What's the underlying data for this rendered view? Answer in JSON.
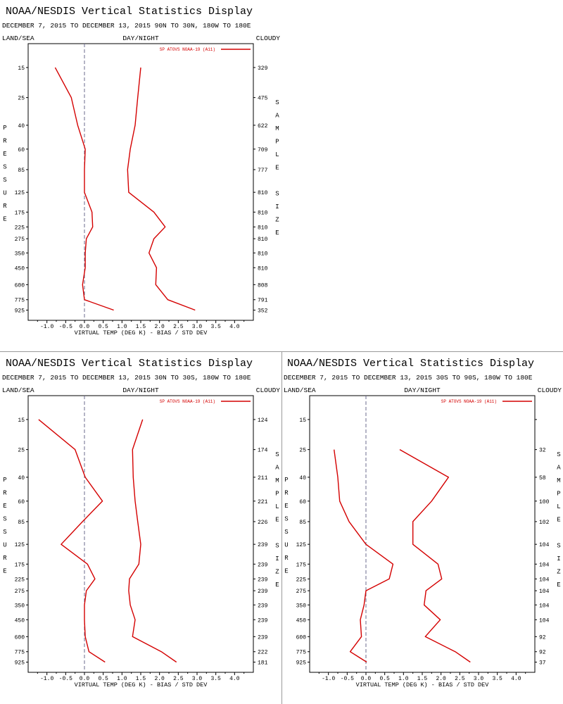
{
  "colors": {
    "series": "#d40000",
    "axis": "#000000",
    "zero_line": "#6b6b8c",
    "divider": "#9a9a9a"
  },
  "chart_data": [
    {
      "type": "line",
      "title": "NOAA/NESDIS Vertical Statistics Display",
      "subtitle": "DECEMBER 7, 2015 TO DECEMBER 13, 2015 90N TO 30N, 180W TO 180E",
      "left_header": "LAND/SEA",
      "center_header": "DAY/NIGHT",
      "right_header": "CLOUDY",
      "y_side_label": "PRESSURE",
      "right_side_label": "SAMPLE SIZE",
      "xlabel": "VIRTUAL TEMP (DEG K) - BIAS / STD DEV",
      "x_ticks": [
        "-1.0",
        "-0.5",
        "0.0",
        "0.5",
        "1.0",
        "1.5",
        "2.0",
        "2.5",
        "3.0",
        "3.5",
        "4.0"
      ],
      "xlim": [
        -1.5,
        4.5
      ],
      "y_scale": "log",
      "ylim": [
        10,
        1100
      ],
      "pressure_levels": [
        15,
        25,
        40,
        60,
        85,
        125,
        175,
        225,
        275,
        350,
        450,
        600,
        775,
        925
      ],
      "pressure_labels": [
        "15",
        "25",
        "40",
        "60",
        "85",
        "125",
        "175",
        "225",
        "275",
        "350",
        "450",
        "600",
        "775",
        "925"
      ],
      "sample_sizes": [
        "329",
        "475",
        "622",
        "709",
        "777",
        "810",
        "810",
        "810",
        "810",
        "810",
        "810",
        "808",
        "791",
        "352"
      ],
      "legend": "SP ATOVS NOAA-19 (A11)",
      "legend_position": "top-right",
      "series": [
        {
          "name": "BIAS",
          "x": [
            -0.78,
            -0.35,
            -0.18,
            0.02,
            0.0,
            0.0,
            0.2,
            0.22,
            0.05,
            0.02,
            0.02,
            -0.05,
            0.0,
            0.78
          ],
          "y": [
            15,
            25,
            40,
            60,
            85,
            125,
            175,
            225,
            275,
            350,
            450,
            600,
            775,
            925
          ]
        },
        {
          "name": "STD DEV",
          "x": [
            1.5,
            1.42,
            1.35,
            1.22,
            1.15,
            1.18,
            1.85,
            2.15,
            1.85,
            1.72,
            1.92,
            1.9,
            2.22,
            2.95
          ],
          "y": [
            15,
            25,
            40,
            60,
            85,
            125,
            175,
            225,
            275,
            350,
            450,
            600,
            775,
            925
          ]
        }
      ]
    },
    {
      "type": "line",
      "title": "NOAA/NESDIS Vertical Statistics Display",
      "subtitle": "DECEMBER 7, 2015 TO DECEMBER 13, 2015 30N TO 30S, 180W TO 180E",
      "left_header": "LAND/SEA",
      "center_header": "DAY/NIGHT",
      "right_header": "CLOUDY",
      "y_side_label": "PRESSURE",
      "right_side_label": "SAMPLE SIZE",
      "xlabel": "VIRTUAL TEMP (DEG K) - BIAS / STD DEV",
      "x_ticks": [
        "-1.0",
        "-0.5",
        "0.0",
        "0.5",
        "1.0",
        "1.5",
        "2.0",
        "2.5",
        "3.0",
        "3.5",
        "4.0"
      ],
      "xlim": [
        -1.5,
        4.5
      ],
      "y_scale": "log",
      "ylim": [
        10,
        1100
      ],
      "pressure_levels": [
        15,
        25,
        40,
        60,
        85,
        125,
        175,
        225,
        275,
        350,
        450,
        600,
        775,
        925
      ],
      "pressure_labels": [
        "15",
        "25",
        "40",
        "60",
        "85",
        "125",
        "175",
        "225",
        "275",
        "350",
        "450",
        "600",
        "775",
        "925"
      ],
      "sample_sizes": [
        "124",
        "174",
        "211",
        "221",
        "226",
        "239",
        "239",
        "239",
        "239",
        "239",
        "239",
        "239",
        "222",
        "181"
      ],
      "legend": "SP ATOVS NOAA-19 (A11)",
      "legend_position": "top-right",
      "series": [
        {
          "name": "BIAS",
          "x": [
            -1.22,
            -0.25,
            0.02,
            0.48,
            -0.05,
            -0.62,
            0.08,
            0.28,
            0.05,
            0.0,
            0.0,
            0.02,
            0.12,
            0.55
          ],
          "y": [
            15,
            25,
            40,
            60,
            85,
            125,
            175,
            225,
            275,
            350,
            450,
            600,
            775,
            925
          ]
        },
        {
          "name": "STD DEV",
          "x": [
            1.55,
            1.28,
            1.3,
            1.35,
            1.42,
            1.5,
            1.45,
            1.2,
            1.18,
            1.22,
            1.35,
            1.28,
            2.05,
            2.45
          ],
          "y": [
            15,
            25,
            40,
            60,
            85,
            125,
            175,
            225,
            275,
            350,
            450,
            600,
            775,
            925
          ]
        }
      ]
    },
    {
      "type": "line",
      "title": "NOAA/NESDIS Vertical Statistics Display",
      "subtitle": "DECEMBER 7, 2015 TO DECEMBER 13, 2015 30S TO 90S, 180W TO 180E",
      "left_header": "LAND/SEA",
      "center_header": "DAY/NIGHT",
      "right_header": "CLOUDY",
      "y_side_label": "PRESSURE",
      "right_side_label": "SAMPLE SIZE",
      "xlabel": "VIRTUAL TEMP (DEG K) - BIAS / STD DEV",
      "x_ticks": [
        "-1.0",
        "-0.5",
        "0.0",
        "0.5",
        "1.0",
        "1.5",
        "2.0",
        "2.5",
        "3.0",
        "3.5",
        "4.0"
      ],
      "xlim": [
        -1.5,
        4.5
      ],
      "y_scale": "log",
      "ylim": [
        10,
        1100
      ],
      "pressure_levels": [
        15,
        25,
        40,
        60,
        85,
        125,
        175,
        225,
        275,
        350,
        450,
        600,
        775,
        925
      ],
      "pressure_labels": [
        "15",
        "25",
        "40",
        "60",
        "85",
        "125",
        "175",
        "225",
        "275",
        "350",
        "450",
        "600",
        "775",
        "925"
      ],
      "sample_sizes": [
        "",
        "32",
        "58",
        "100",
        "102",
        "104",
        "104",
        "104",
        "104",
        "104",
        "104",
        "92",
        "92",
        "37"
      ],
      "legend": "SP ATOVS NOAA-19 (A11)",
      "legend_position": "top-right",
      "series": [
        {
          "name": "BIAS",
          "x": [
            null,
            -0.85,
            -0.75,
            -0.7,
            -0.45,
            0.0,
            0.72,
            0.62,
            0.0,
            -0.05,
            -0.15,
            -0.12,
            -0.42,
            0.02
          ],
          "y": [
            15,
            25,
            40,
            60,
            85,
            125,
            175,
            225,
            275,
            350,
            450,
            600,
            775,
            925
          ]
        },
        {
          "name": "STD DEV",
          "x": [
            null,
            0.9,
            2.2,
            1.75,
            1.25,
            1.25,
            1.92,
            2.02,
            1.6,
            1.55,
            1.98,
            1.58,
            2.38,
            2.78
          ],
          "y": [
            15,
            25,
            40,
            60,
            85,
            125,
            175,
            225,
            275,
            350,
            450,
            600,
            775,
            925
          ]
        }
      ]
    }
  ]
}
